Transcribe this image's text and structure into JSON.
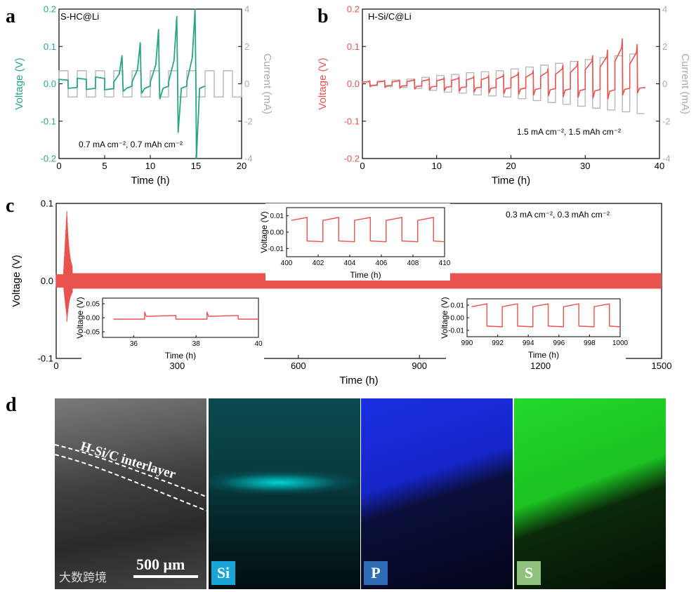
{
  "panels": {
    "a": {
      "letter": "a",
      "tag": "S-HC@Li",
      "condition": "0.7 mA cm⁻², 0.7 mAh cm⁻²"
    },
    "b": {
      "letter": "b",
      "tag": "H-Si/C@Li",
      "condition": "1.5 mA cm⁻², 1.5 mAh cm⁻²"
    },
    "c": {
      "letter": "c",
      "condition": "0.3 mA cm⁻², 0.3 mAh cm⁻²"
    },
    "d": {
      "letter": "d",
      "interlayer_label": "H-Si/C interlayer",
      "scale_bar": "500 μm",
      "badges": [
        {
          "label": "Si",
          "color": "#18a6d8"
        },
        {
          "label": "P",
          "color": "#2c6db3"
        },
        {
          "label": "S",
          "color": "#8fc37d"
        }
      ]
    }
  },
  "colors": {
    "green": "#2aa584",
    "red": "#e8534f",
    "gray": "#b8b8b8",
    "black": "#000000"
  },
  "watermark": "大数跨境",
  "chart_data": [
    {
      "id": "a",
      "type": "line",
      "title": "S-HC@Li",
      "xlabel": "Time (h)",
      "ylabel": "Voltage (V)",
      "y2label": "Current (mA)",
      "xlim": [
        0,
        20
      ],
      "ylim": [
        -0.2,
        0.2
      ],
      "y2lim": [
        -4,
        4
      ],
      "xticks": [
        0,
        5,
        10,
        15,
        20
      ],
      "yticks": [
        -0.2,
        -0.1,
        0.0,
        0.1,
        0.2
      ],
      "y2ticks": [
        -4,
        -2,
        0,
        2,
        4
      ],
      "xticklabels": [
        "0",
        "5",
        "10",
        "15",
        "20"
      ],
      "yticklabels": [
        "-0.2",
        "-0.1",
        "0.0",
        "0.1",
        "0.2"
      ],
      "y2ticklabels": [
        "-4",
        "-2",
        "0",
        "2",
        "4"
      ],
      "series": [
        {
          "name": "Voltage",
          "axis": "left",
          "color": "#2aa584",
          "cycles": [
            {
              "t0": 0,
              "peak": 0.012,
              "trough": -0.012
            },
            {
              "t0": 2,
              "peak": 0.015,
              "trough": -0.015
            },
            {
              "t0": 4,
              "peak": 0.018,
              "trough": -0.016
            },
            {
              "t0": 6,
              "peak": 0.075,
              "trough": -0.02
            },
            {
              "t0": 8,
              "peak": 0.11,
              "trough": -0.025
            },
            {
              "t0": 10,
              "peak": 0.145,
              "trough": -0.04
            },
            {
              "t0": 12,
              "peak": 0.18,
              "trough": -0.13
            },
            {
              "t0": 14,
              "peak": 0.2,
              "trough": -0.2
            }
          ]
        },
        {
          "name": "Current",
          "axis": "right",
          "color": "#b8b8b8",
          "amplitude": 0.7,
          "period_h": 2,
          "x_range": [
            0,
            20
          ]
        }
      ]
    },
    {
      "id": "b",
      "type": "line",
      "title": "H-Si/C@Li",
      "xlabel": "Time (h)",
      "ylabel": "Voltage (V)",
      "y2label": "Current (mA)",
      "xlim": [
        0,
        40
      ],
      "ylim": [
        -0.2,
        0.2
      ],
      "y2lim": [
        -4,
        4
      ],
      "xticks": [
        0,
        10,
        20,
        30,
        40
      ],
      "yticks": [
        -0.2,
        -0.1,
        0.0,
        0.1,
        0.2
      ],
      "y2ticks": [
        -4,
        -2,
        0,
        2,
        4
      ],
      "xticklabels": [
        "0",
        "10",
        "20",
        "30",
        "40"
      ],
      "yticklabels": [
        "-0.2",
        "-0.1",
        "0.0",
        "0.1",
        "0.2"
      ],
      "y2ticklabels": [
        "-4",
        "-2",
        "0",
        "2",
        "4"
      ],
      "series": [
        {
          "name": "Voltage",
          "axis": "left",
          "color": "#e8534f",
          "period_h": 2,
          "x_range": [
            0,
            37
          ],
          "peaks": [
            0.008,
            0.009,
            0.01,
            0.012,
            0.014,
            0.016,
            0.018,
            0.02,
            0.022,
            0.025,
            0.03,
            0.035,
            0.04,
            0.05,
            0.06,
            0.075,
            0.09,
            0.12,
            0.105
          ],
          "troughs": [
            -0.004,
            -0.005,
            -0.006,
            -0.007,
            -0.008,
            -0.009,
            -0.01,
            -0.011,
            -0.012,
            -0.013,
            -0.014,
            -0.015,
            -0.016,
            -0.017,
            -0.018,
            -0.019,
            -0.02,
            -0.015,
            -0.012
          ]
        },
        {
          "name": "Current",
          "axis": "right",
          "color": "#b8b8b8",
          "period_h": 2,
          "x_range": [
            0,
            38
          ],
          "amplitudes": [
            0.1,
            0.15,
            0.2,
            0.25,
            0.35,
            0.45,
            0.5,
            0.6,
            0.65,
            0.7,
            0.8,
            0.9,
            1.0,
            1.1,
            1.2,
            1.3,
            1.4,
            1.5,
            1.6
          ]
        }
      ]
    },
    {
      "id": "c",
      "type": "line",
      "xlabel": "Time (h)",
      "ylabel": "Voltage (V)",
      "xlim": [
        0,
        1500
      ],
      "ylim": [
        -0.1,
        0.1
      ],
      "xticks": [
        0,
        300,
        600,
        900,
        1200,
        1500
      ],
      "yticks": [
        -0.1,
        0.0,
        0.1
      ],
      "xticklabels": [
        "0",
        "300",
        "600",
        "900",
        "1200",
        "1500"
      ],
      "yticklabels": [
        "-0.1",
        "0.0",
        "0.1"
      ],
      "series": [
        {
          "name": "Voltage",
          "color": "#e8534f",
          "spike_time_h": 25,
          "spike_max": 0.085,
          "spike_min": -0.045,
          "steady_amplitude": 0.01
        }
      ],
      "insets": [
        {
          "id": "c-inset-mid",
          "xlim": [
            400,
            410
          ],
          "ylim": [
            -0.015,
            0.015
          ],
          "xticks": [
            400,
            402,
            404,
            406,
            408,
            410
          ],
          "yticks": [
            -0.01,
            0.0,
            0.01
          ],
          "xticklabels": [
            "400",
            "402",
            "404",
            "406",
            "408",
            "410"
          ],
          "yticklabels": [
            "-0.01",
            "0.00",
            "0.01"
          ],
          "xlabel": "Time (h)",
          "ylabel": "Voltage (V)",
          "amplitude": 0.009,
          "period_h": 2,
          "phase_h": 0.3
        },
        {
          "id": "c-inset-left",
          "xlim": [
            35,
            40
          ],
          "ylim": [
            -0.07,
            0.07
          ],
          "xticks": [
            36,
            38,
            40
          ],
          "yticks": [
            -0.05,
            0.0,
            0.05
          ],
          "xticklabels": [
            "36",
            "38",
            "40"
          ],
          "yticklabels": [
            "-0.05",
            "0.00",
            "0.05"
          ],
          "xlabel": "Time (h)",
          "ylabel": "Voltage (V)",
          "period_h": 2,
          "phase_h": 0.35,
          "high": 0.005,
          "low": -0.005,
          "spike": 0.02
        },
        {
          "id": "c-inset-right",
          "xlim": [
            990,
            1000
          ],
          "ylim": [
            -0.015,
            0.015
          ],
          "xticks": [
            990,
            992,
            994,
            996,
            998,
            1000
          ],
          "yticks": [
            -0.01,
            0.0,
            0.01
          ],
          "xticklabels": [
            "990",
            "992",
            "994",
            "996",
            "998",
            "1000"
          ],
          "yticklabels": [
            "-0.01",
            "0.00",
            "0.01"
          ],
          "xlabel": "Time (h)",
          "ylabel": "Voltage (V)",
          "amplitude": 0.011,
          "period_h": 2,
          "phase_h": 0.3
        }
      ]
    }
  ]
}
